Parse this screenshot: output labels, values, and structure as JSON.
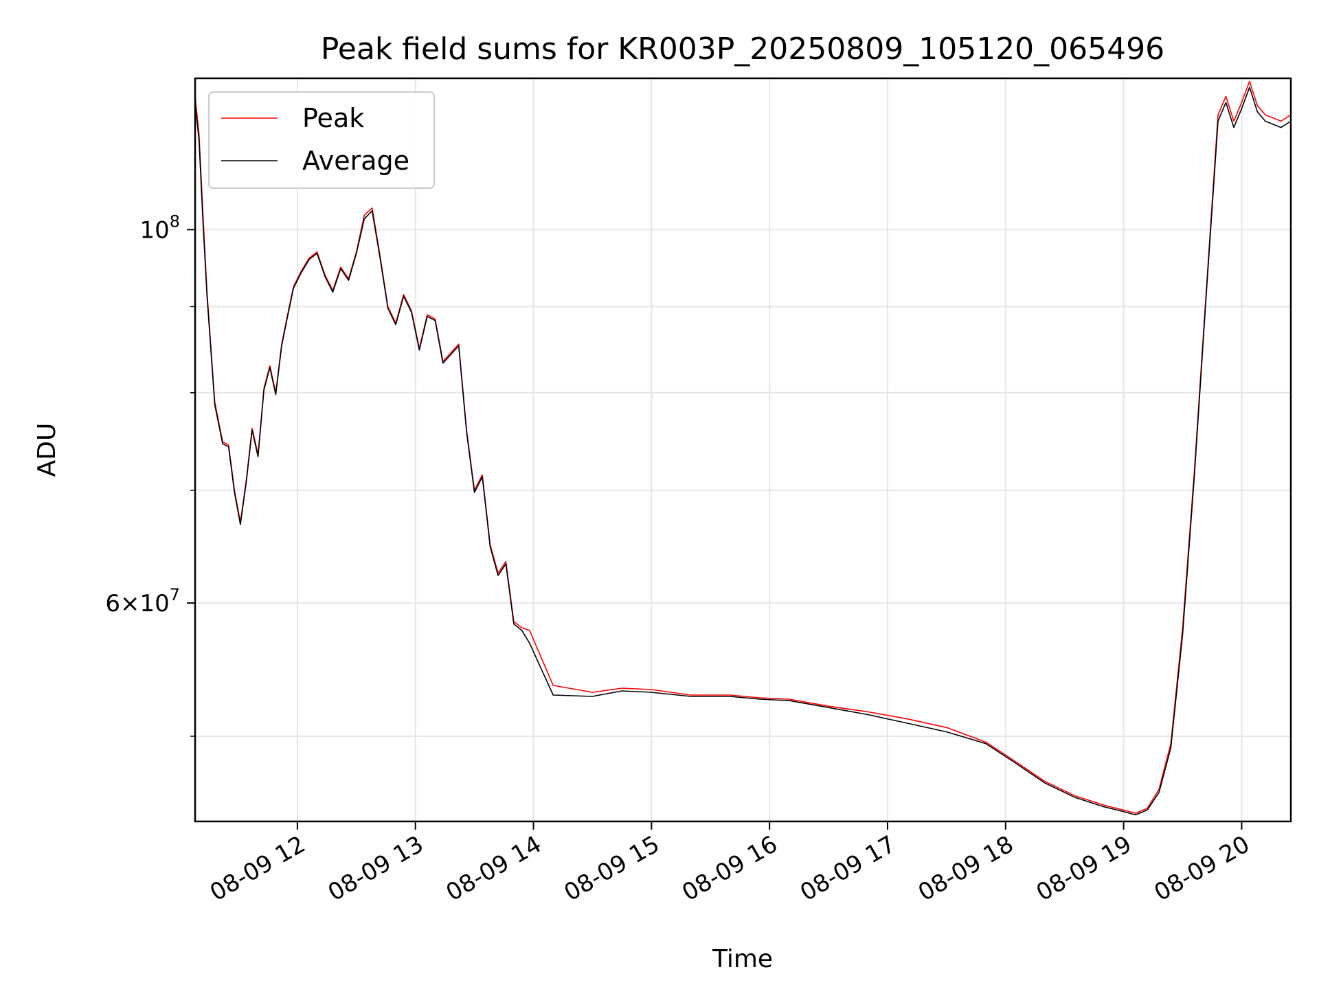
{
  "chart_data": {
    "type": "line",
    "title": "Peak field sums for KR003P_20250809_105120_065496",
    "xlabel": "Time",
    "ylabel": "ADU",
    "y_scale": "log",
    "grid": true,
    "legend_position": "top-left",
    "xlim": [
      "2025-08-09T11:08",
      "2025-08-09T20:25"
    ],
    "ylim": [
      44500000,
      123000000
    ],
    "x_ticks": [
      {
        "value": "2025-08-09T12:00",
        "label": "08-09 12"
      },
      {
        "value": "2025-08-09T13:00",
        "label": "08-09 13"
      },
      {
        "value": "2025-08-09T14:00",
        "label": "08-09 14"
      },
      {
        "value": "2025-08-09T15:00",
        "label": "08-09 15"
      },
      {
        "value": "2025-08-09T16:00",
        "label": "08-09 16"
      },
      {
        "value": "2025-08-09T17:00",
        "label": "08-09 17"
      },
      {
        "value": "2025-08-09T18:00",
        "label": "08-09 18"
      },
      {
        "value": "2025-08-09T19:00",
        "label": "08-09 19"
      },
      {
        "value": "2025-08-09T20:00",
        "label": "08-09 20"
      }
    ],
    "y_major_ticks": [
      {
        "value": 60000000,
        "mantissa": "6",
        "exponent": "7"
      },
      {
        "value": 100000000,
        "mantissa": "",
        "exponent": "8"
      }
    ],
    "y_minor_ticks": [
      50000000,
      70000000,
      80000000,
      90000000
    ],
    "series": [
      {
        "name": "Peak",
        "color": "#ff0000",
        "x": [
          "2025-08-09T11:08",
          "2025-08-09T11:10",
          "2025-08-09T11:12",
          "2025-08-09T11:14",
          "2025-08-09T11:18",
          "2025-08-09T11:22",
          "2025-08-09T11:25",
          "2025-08-09T11:28",
          "2025-08-09T11:31",
          "2025-08-09T11:34",
          "2025-08-09T11:37",
          "2025-08-09T11:40",
          "2025-08-09T11:43",
          "2025-08-09T11:46",
          "2025-08-09T11:49",
          "2025-08-09T11:52",
          "2025-08-09T11:55",
          "2025-08-09T11:58",
          "2025-08-09T12:02",
          "2025-08-09T12:06",
          "2025-08-09T12:10",
          "2025-08-09T12:14",
          "2025-08-09T12:18",
          "2025-08-09T12:22",
          "2025-08-09T12:26",
          "2025-08-09T12:30",
          "2025-08-09T12:34",
          "2025-08-09T12:38",
          "2025-08-09T12:42",
          "2025-08-09T12:46",
          "2025-08-09T12:50",
          "2025-08-09T12:54",
          "2025-08-09T12:58",
          "2025-08-09T13:02",
          "2025-08-09T13:06",
          "2025-08-09T13:10",
          "2025-08-09T13:14",
          "2025-08-09T13:18",
          "2025-08-09T13:22",
          "2025-08-09T13:26",
          "2025-08-09T13:30",
          "2025-08-09T13:34",
          "2025-08-09T13:38",
          "2025-08-09T13:42",
          "2025-08-09T13:46",
          "2025-08-09T13:50",
          "2025-08-09T13:54",
          "2025-08-09T13:58",
          "2025-08-09T14:10",
          "2025-08-09T14:30",
          "2025-08-09T14:45",
          "2025-08-09T15:00",
          "2025-08-09T15:20",
          "2025-08-09T15:40",
          "2025-08-09T15:55",
          "2025-08-09T16:10",
          "2025-08-09T16:30",
          "2025-08-09T16:50",
          "2025-08-09T17:10",
          "2025-08-09T17:30",
          "2025-08-09T17:50",
          "2025-08-09T18:05",
          "2025-08-09T18:20",
          "2025-08-09T18:35",
          "2025-08-09T18:50",
          "2025-08-09T19:00",
          "2025-08-09T19:06",
          "2025-08-09T19:12",
          "2025-08-09T19:18",
          "2025-08-09T19:24",
          "2025-08-09T19:30",
          "2025-08-09T19:36",
          "2025-08-09T19:42",
          "2025-08-09T19:48",
          "2025-08-09T19:52",
          "2025-08-09T19:56",
          "2025-08-09T20:00",
          "2025-08-09T20:04",
          "2025-08-09T20:08",
          "2025-08-09T20:12",
          "2025-08-09T20:16",
          "2025-08-09T20:20",
          "2025-08-09T20:25"
        ],
        "values": [
          120000000,
          114000000,
          102000000,
          92000000,
          79000000,
          74800000,
          74500000,
          70000000,
          67000000,
          71000000,
          76200000,
          73500000,
          80500000,
          83000000,
          80000000,
          85500000,
          89000000,
          92500000,
          94500000,
          96200000,
          97000000,
          94000000,
          92000000,
          95000000,
          93500000,
          97000000,
          102000000,
          103000000,
          96500000,
          90000000,
          88000000,
          91500000,
          89500000,
          85000000,
          89000000,
          88500000,
          83500000,
          84500000,
          85500000,
          76000000,
          70000000,
          71500000,
          65000000,
          62500000,
          63500000,
          58500000,
          58000000,
          57800000,
          53600000,
          53100000,
          53400000,
          53300000,
          52900000,
          52900000,
          52700000,
          52600000,
          52100000,
          51700000,
          51200000,
          50600000,
          49600000,
          48300000,
          47000000,
          46100000,
          45500000,
          45200000,
          45000000,
          45300000,
          46500000,
          49500000,
          58000000,
          72000000,
          92000000,
          117000000,
          120000000,
          116000000,
          119000000,
          122500000,
          118500000,
          117000000,
          116500000,
          116000000,
          117000000
        ]
      },
      {
        "name": "Average",
        "color": "#000000",
        "x": [
          "2025-08-09T11:08",
          "2025-08-09T11:10",
          "2025-08-09T11:12",
          "2025-08-09T11:14",
          "2025-08-09T11:18",
          "2025-08-09T11:22",
          "2025-08-09T11:25",
          "2025-08-09T11:28",
          "2025-08-09T11:31",
          "2025-08-09T11:34",
          "2025-08-09T11:37",
          "2025-08-09T11:40",
          "2025-08-09T11:43",
          "2025-08-09T11:46",
          "2025-08-09T11:49",
          "2025-08-09T11:52",
          "2025-08-09T11:55",
          "2025-08-09T11:58",
          "2025-08-09T12:02",
          "2025-08-09T12:06",
          "2025-08-09T12:10",
          "2025-08-09T12:14",
          "2025-08-09T12:18",
          "2025-08-09T12:22",
          "2025-08-09T12:26",
          "2025-08-09T12:30",
          "2025-08-09T12:34",
          "2025-08-09T12:38",
          "2025-08-09T12:42",
          "2025-08-09T12:46",
          "2025-08-09T12:50",
          "2025-08-09T12:54",
          "2025-08-09T12:58",
          "2025-08-09T13:02",
          "2025-08-09T13:06",
          "2025-08-09T13:10",
          "2025-08-09T13:14",
          "2025-08-09T13:18",
          "2025-08-09T13:22",
          "2025-08-09T13:26",
          "2025-08-09T13:30",
          "2025-08-09T13:34",
          "2025-08-09T13:38",
          "2025-08-09T13:42",
          "2025-08-09T13:46",
          "2025-08-09T13:50",
          "2025-08-09T13:54",
          "2025-08-09T13:58",
          "2025-08-09T14:10",
          "2025-08-09T14:30",
          "2025-08-09T14:45",
          "2025-08-09T15:00",
          "2025-08-09T15:20",
          "2025-08-09T15:40",
          "2025-08-09T15:55",
          "2025-08-09T16:10",
          "2025-08-09T16:30",
          "2025-08-09T16:50",
          "2025-08-09T17:10",
          "2025-08-09T17:30",
          "2025-08-09T17:50",
          "2025-08-09T18:05",
          "2025-08-09T18:20",
          "2025-08-09T18:35",
          "2025-08-09T18:50",
          "2025-08-09T19:00",
          "2025-08-09T19:06",
          "2025-08-09T19:12",
          "2025-08-09T19:18",
          "2025-08-09T19:24",
          "2025-08-09T19:30",
          "2025-08-09T19:36",
          "2025-08-09T19:42",
          "2025-08-09T19:48",
          "2025-08-09T19:52",
          "2025-08-09T19:56",
          "2025-08-09T20:00",
          "2025-08-09T20:04",
          "2025-08-09T20:08",
          "2025-08-09T20:12",
          "2025-08-09T20:16",
          "2025-08-09T20:20",
          "2025-08-09T20:25"
        ],
        "values": [
          119000000,
          113000000,
          101000000,
          91500000,
          78700000,
          74600000,
          74300000,
          69800000,
          66800000,
          70800000,
          76000000,
          73300000,
          80300000,
          82800000,
          79800000,
          85300000,
          88800000,
          92300000,
          94300000,
          96000000,
          96800000,
          93800000,
          91800000,
          94800000,
          93300000,
          96800000,
          101500000,
          102600000,
          96200000,
          89800000,
          87800000,
          91300000,
          89300000,
          84800000,
          88800000,
          88300000,
          83300000,
          84300000,
          85300000,
          75800000,
          69800000,
          71300000,
          64800000,
          62300000,
          63300000,
          58300000,
          57800000,
          56800000,
          52900000,
          52800000,
          53200000,
          53100000,
          52800000,
          52800000,
          52600000,
          52500000,
          52000000,
          51500000,
          50900000,
          50300000,
          49500000,
          48200000,
          46900000,
          46000000,
          45400000,
          45100000,
          44900000,
          45200000,
          46300000,
          49200000,
          57500000,
          71500000,
          91500000,
          116000000,
          119000000,
          115000000,
          118000000,
          121500000,
          117500000,
          116000000,
          115500000,
          115000000,
          116000000
        ]
      }
    ]
  }
}
